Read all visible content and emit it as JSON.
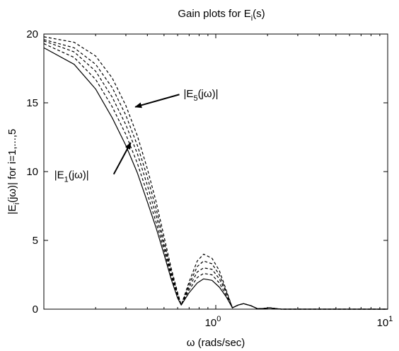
{
  "chart_data": {
    "type": "line",
    "title": {
      "main": "Gain plots for E",
      "sub": "i",
      "tail": "(s)"
    },
    "xlabel": "ω (rads/sec)",
    "ylabel": {
      "a": "|E",
      "sub": "i",
      "b": "(jω)| for i=1,...,5"
    },
    "xscale": "log",
    "xlim": [
      0.1,
      10
    ],
    "ylim": [
      0,
      20
    ],
    "yticks": [
      "0",
      "5",
      "10",
      "15",
      "20"
    ],
    "xticks": [
      {
        "base": "10",
        "exp": "0",
        "value": 1
      },
      {
        "base": "10",
        "exp": "1",
        "value": 10
      }
    ],
    "grid": false,
    "series": [
      {
        "style": "solid",
        "x": [
          0.1,
          0.15,
          0.2,
          0.25,
          0.3,
          0.35,
          0.4,
          0.45,
          0.5,
          0.55,
          0.6,
          0.63,
          0.7,
          0.78,
          0.85,
          0.95,
          1.05,
          1.15,
          1.25,
          1.35,
          1.45,
          1.6,
          1.75,
          1.9,
          2.05,
          2.2,
          2.4,
          2.6,
          3,
          4,
          6,
          10
        ],
        "y": [
          19.0,
          17.8,
          16.0,
          13.9,
          11.9,
          9.9,
          7.8,
          5.9,
          4.0,
          2.2,
          0.8,
          0.3,
          1.2,
          1.9,
          2.2,
          2.1,
          1.6,
          0.9,
          0.1,
          0.3,
          0.4,
          0.25,
          0.03,
          0.05,
          0.1,
          0.05,
          0.0,
          0.0,
          0.0,
          0.0,
          0.0,
          0.0
        ]
      },
      {
        "style": "dashed",
        "x": [
          0.1,
          0.15,
          0.2,
          0.25,
          0.3,
          0.35,
          0.4,
          0.45,
          0.5,
          0.55,
          0.6,
          0.63,
          0.7,
          0.78,
          0.85,
          0.95,
          1.05,
          1.15,
          1.25,
          1.35,
          1.45,
          1.6,
          1.75,
          1.9,
          2.05,
          2.2,
          2.4,
          2.6,
          3,
          4,
          6,
          10
        ],
        "y": [
          19.3,
          18.3,
          16.7,
          14.7,
          12.7,
          10.6,
          8.4,
          6.3,
          4.3,
          2.4,
          0.9,
          0.3,
          1.4,
          2.3,
          2.6,
          2.5,
          1.9,
          1.0,
          0.1,
          0.3,
          0.4,
          0.25,
          0.03,
          0.05,
          0.1,
          0.05,
          0.0,
          0.0,
          0.0,
          0.0,
          0.0,
          0.0
        ]
      },
      {
        "style": "dashed",
        "x": [
          0.1,
          0.15,
          0.2,
          0.25,
          0.3,
          0.35,
          0.4,
          0.45,
          0.5,
          0.55,
          0.6,
          0.63,
          0.7,
          0.78,
          0.85,
          0.95,
          1.05,
          1.15,
          1.25,
          1.35,
          1.45,
          1.6,
          1.75,
          1.9,
          2.05,
          2.2,
          2.4,
          2.6,
          3,
          4,
          6,
          10
        ],
        "y": [
          19.5,
          18.7,
          17.3,
          15.4,
          13.4,
          11.3,
          9.0,
          6.8,
          4.6,
          2.6,
          1.0,
          0.3,
          1.6,
          2.7,
          3.0,
          2.9,
          2.2,
          1.2,
          0.1,
          0.3,
          0.4,
          0.25,
          0.03,
          0.05,
          0.1,
          0.05,
          0.0,
          0.0,
          0.0,
          0.0,
          0.0,
          0.0
        ]
      },
      {
        "style": "dashed",
        "x": [
          0.1,
          0.15,
          0.2,
          0.25,
          0.3,
          0.35,
          0.4,
          0.45,
          0.5,
          0.55,
          0.6,
          0.63,
          0.7,
          0.78,
          0.85,
          0.95,
          1.05,
          1.15,
          1.25,
          1.35,
          1.45,
          1.6,
          1.75,
          1.9,
          2.05,
          2.2,
          2.4,
          2.6,
          3,
          4,
          6,
          10
        ],
        "y": [
          19.6,
          19.0,
          17.8,
          16.1,
          14.1,
          11.9,
          9.6,
          7.3,
          4.9,
          2.8,
          1.1,
          0.3,
          1.8,
          3.1,
          3.5,
          3.3,
          2.5,
          1.3,
          0.1,
          0.3,
          0.4,
          0.25,
          0.03,
          0.05,
          0.1,
          0.05,
          0.0,
          0.0,
          0.0,
          0.0,
          0.0,
          0.0
        ]
      },
      {
        "style": "dashed",
        "x": [
          0.1,
          0.15,
          0.2,
          0.25,
          0.3,
          0.35,
          0.4,
          0.45,
          0.5,
          0.55,
          0.6,
          0.63,
          0.7,
          0.78,
          0.85,
          0.95,
          1.05,
          1.15,
          1.25,
          1.35,
          1.45,
          1.6,
          1.75,
          1.9,
          2.05,
          2.2,
          2.4,
          2.6,
          3,
          4,
          6,
          10
        ],
        "y": [
          19.8,
          19.4,
          18.4,
          16.8,
          14.8,
          12.6,
          10.2,
          7.8,
          5.3,
          3.0,
          1.2,
          0.3,
          2.0,
          3.5,
          4.0,
          3.7,
          2.8,
          1.4,
          0.1,
          0.3,
          0.4,
          0.25,
          0.03,
          0.05,
          0.1,
          0.05,
          0.0,
          0.0,
          0.0,
          0.0,
          0.0,
          0.0
        ]
      }
    ],
    "annotations": [
      {
        "prefix": "|E",
        "sub": "5",
        "suffix": "(jω)|",
        "label_x": 0.65,
        "label_y": 15.4,
        "arrow_x": 0.34,
        "arrow_y": 14.7
      },
      {
        "prefix": "|E",
        "sub": "1",
        "suffix": "(jω)|",
        "label_x": 0.115,
        "label_y": 9.5,
        "arrow_x": 0.32,
        "arrow_y": 12.1
      }
    ]
  }
}
